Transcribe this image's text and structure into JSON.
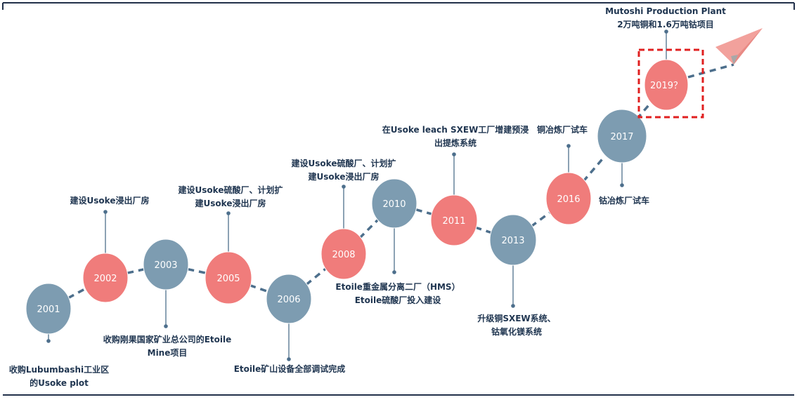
{
  "colors": {
    "blue_node": "#7d9cb1",
    "red_node": "#f07c7b",
    "line": "#4d6f8c",
    "border": "#22304a",
    "dash_box": "#e02020",
    "label": "#1f3550",
    "plane": "#f2a19c"
  },
  "milestones": [
    {
      "year": "2001",
      "color": "blue",
      "lines": [
        "收购Lubumbashi工业区",
        "的Usoke plot"
      ]
    },
    {
      "year": "2002",
      "color": "red",
      "lines": [
        "建设Usoke浸出厂房"
      ]
    },
    {
      "year": "2003",
      "color": "blue",
      "lines": [
        "收购刚果国家矿业总公司的Etoile",
        "Mine项目"
      ]
    },
    {
      "year": "2005",
      "color": "red",
      "lines": [
        "建设Usoke硫酸厂、计划扩",
        "建Usoke浸出厂房"
      ]
    },
    {
      "year": "2006",
      "color": "blue",
      "lines": [
        "Etoile矿山设备全部调试完成"
      ]
    },
    {
      "year": "2008",
      "color": "red",
      "lines": [
        "建设Usoke硫酸厂、计划扩",
        "建Usoke浸出厂房"
      ]
    },
    {
      "year": "2010",
      "color": "blue",
      "lines": [
        "Etoile重金属分离二厂（HMS）",
        "Etoile硫酸厂投入建设"
      ]
    },
    {
      "year": "2011",
      "color": "red",
      "lines": [
        "在Usoke leach SXEW工厂增建预浸",
        "出提炼系统"
      ]
    },
    {
      "year": "2013",
      "color": "blue",
      "lines": [
        "升级铜SXEW系统、",
        "钴氧化镁系统"
      ]
    },
    {
      "year": "2016",
      "color": "red",
      "lines": [
        "铜冶炼厂试车"
      ]
    },
    {
      "year": "2017",
      "color": "blue",
      "lines": [
        "钴冶炼厂试车"
      ]
    },
    {
      "year": "2019？",
      "color": "red",
      "lines": [
        "Mutoshi Production Plant",
        "2万吨铜和1.6万吨钴项目"
      ]
    }
  ]
}
